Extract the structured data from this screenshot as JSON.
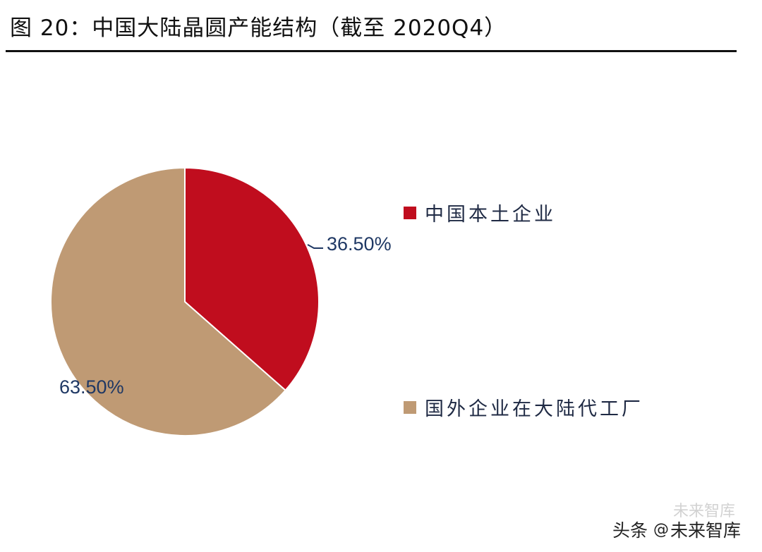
{
  "header": {
    "title": "图 20：中国大陆晶圆产能结构（截至 2020Q4）"
  },
  "chart_data": {
    "type": "pie",
    "title": "中国大陆晶圆产能结构（截至 2020Q4）",
    "slices": [
      {
        "name": "中国本土企业",
        "value": 36.5,
        "label": "36.50%",
        "color": "#c00d1e"
      },
      {
        "name": "国外企业在大陆代工厂",
        "value": 63.5,
        "label": "63.50%",
        "color": "#bf9a74"
      }
    ],
    "start_angle_deg": 0,
    "direction": "clockwise",
    "legend_position": "right"
  },
  "watermark": {
    "ghost_text": "未来智库",
    "platform": "头条",
    "at": "@",
    "account": "未来智库"
  }
}
